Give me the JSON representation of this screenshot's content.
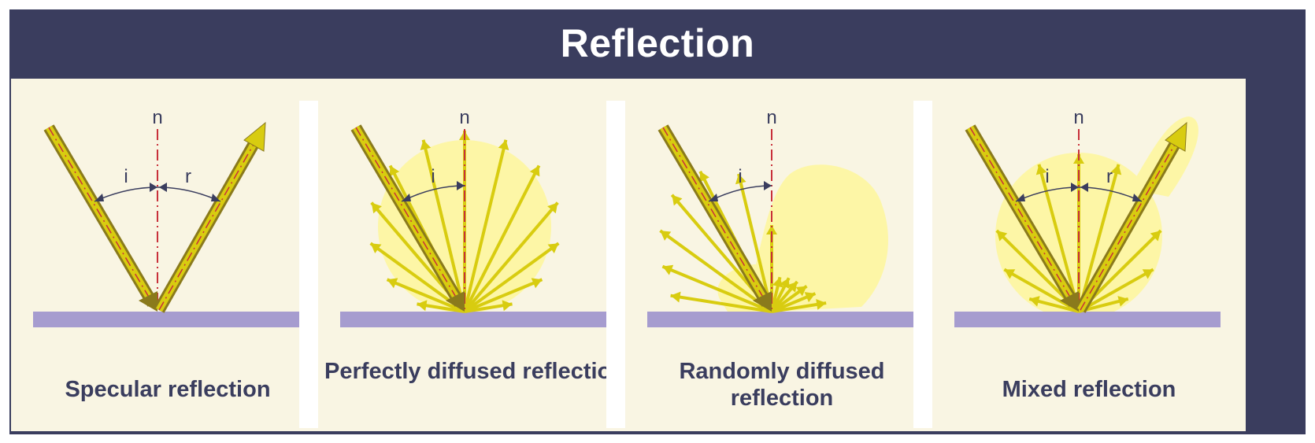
{
  "title": "Reflection",
  "panels": [
    {
      "caption": "Specular reflection",
      "normal_label": "n",
      "incident_label": "i",
      "reflected_label": "r"
    },
    {
      "caption": "Perfectly diffused reflection",
      "normal_label": "n",
      "incident_label": "i"
    },
    {
      "caption": "Randomly diffused reflection",
      "normal_label": "n",
      "incident_label": "i"
    },
    {
      "caption": "Mixed reflection",
      "normal_label": "n",
      "incident_label": "i",
      "reflected_label": "r"
    }
  ],
  "colors": {
    "frame": "#3a3d5e",
    "panel_background": "#f9f5e3",
    "surface": "#a69ccf",
    "ray": "#d8cc10",
    "ray_dark": "#8a7a1c",
    "glow": "#fdf6a6",
    "normal_line": "#c8303a"
  }
}
